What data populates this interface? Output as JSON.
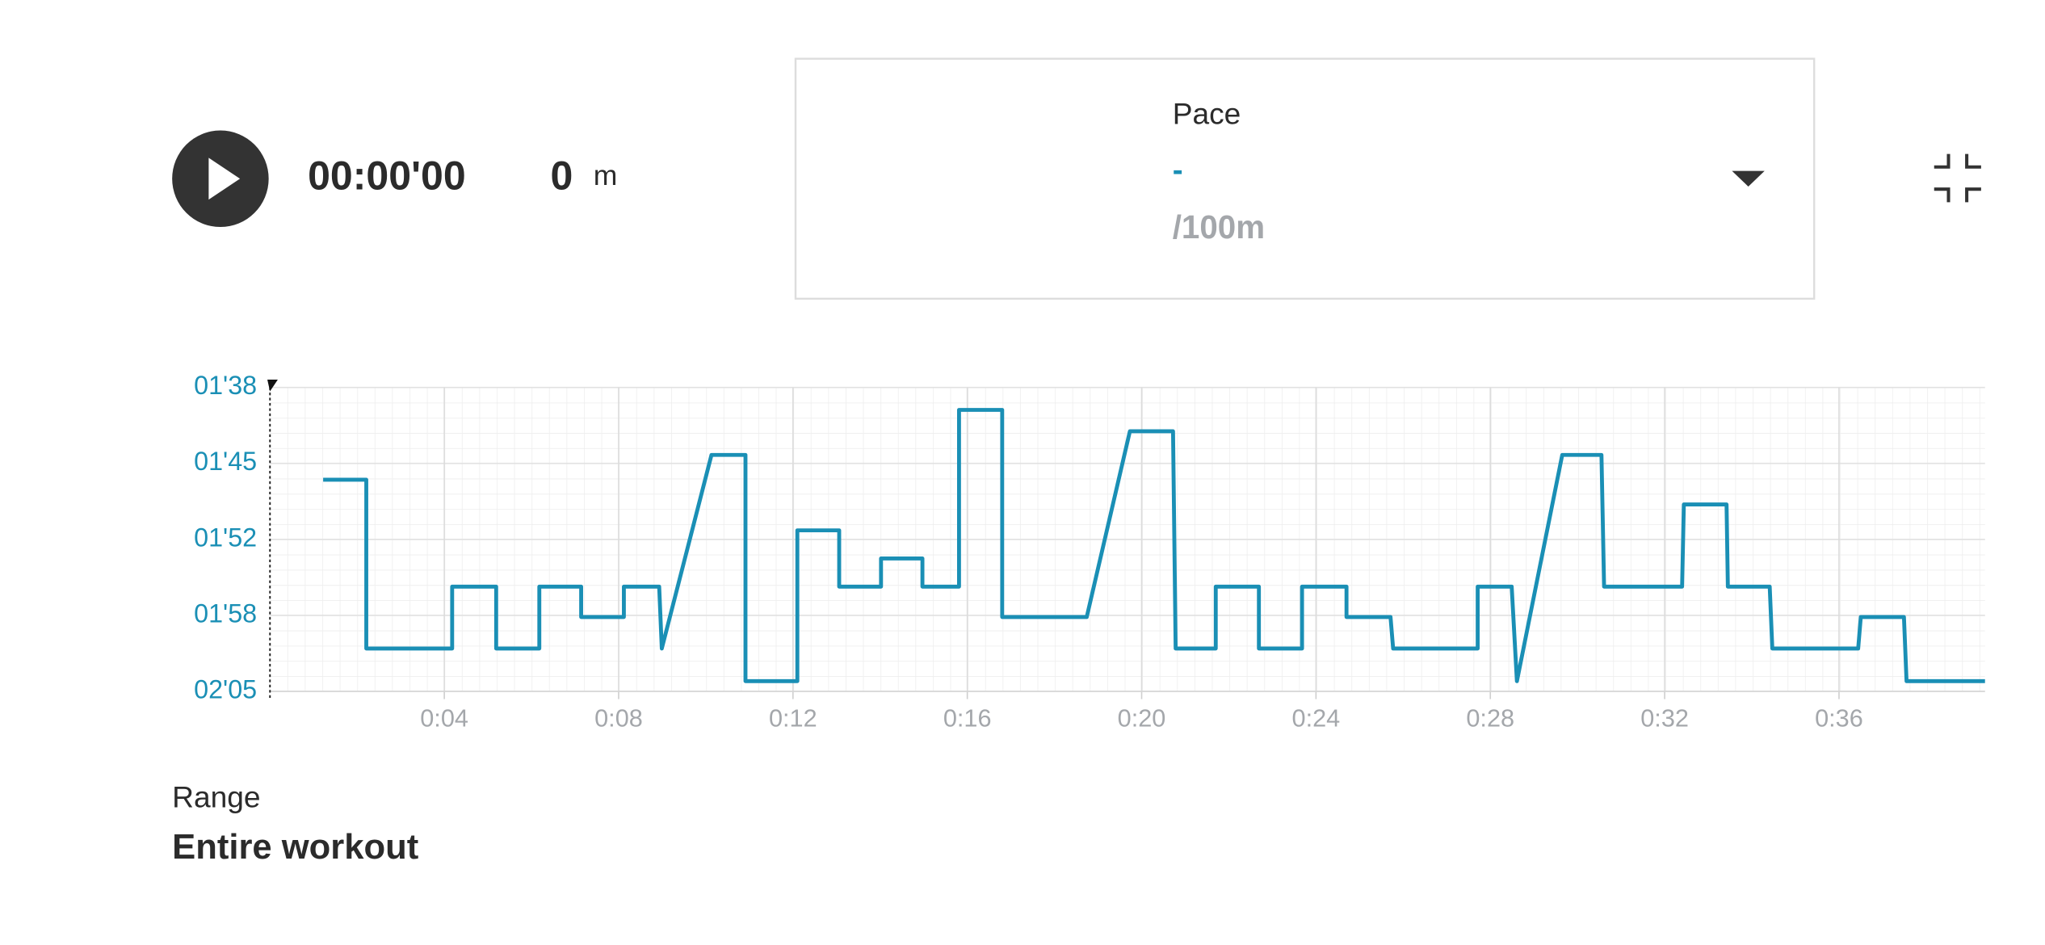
{
  "header": {
    "time": "00:00'00",
    "distance": "0",
    "distance_unit": "m",
    "metric": {
      "label": "Pace",
      "value": "-",
      "unit": "/100m"
    }
  },
  "chart_data": {
    "type": "line",
    "y_inverted": true,
    "grid": true,
    "xlim": [
      0,
      39.35
    ],
    "ylim": [
      98,
      125
    ],
    "xticks": [
      {
        "value": 4,
        "label": "0:04"
      },
      {
        "value": 8,
        "label": "0:08"
      },
      {
        "value": 12,
        "label": "0:12"
      },
      {
        "value": 16,
        "label": "0:16"
      },
      {
        "value": 20,
        "label": "0:20"
      },
      {
        "value": 24,
        "label": "0:24"
      },
      {
        "value": 28,
        "label": "0:28"
      },
      {
        "value": 32,
        "label": "0:32"
      },
      {
        "value": 36,
        "label": "0:36"
      }
    ],
    "yticks": [
      {
        "value": 98,
        "label": "01'38"
      },
      {
        "value": 104.75,
        "label": "01'45"
      },
      {
        "value": 111.5,
        "label": "01'52"
      },
      {
        "value": 118.25,
        "label": "01'58"
      },
      {
        "value": 125,
        "label": "02'05"
      }
    ],
    "series": [
      {
        "color": "#1a8fb5",
        "x": [
          1.22,
          2.21,
          2.21,
          4.18,
          4.18,
          5.19,
          5.19,
          6.18,
          6.18,
          7.14,
          7.14,
          8.12,
          8.12,
          8.93,
          8.99,
          10.13,
          10.91,
          10.91,
          12.1,
          12.1,
          13.06,
          13.06,
          14.02,
          14.02,
          14.97,
          14.97,
          15.81,
          15.81,
          16.8,
          16.8,
          18.74,
          19.73,
          20.72,
          20.78,
          21.7,
          21.7,
          22.69,
          22.69,
          23.68,
          23.68,
          24.7,
          24.7,
          25.71,
          25.77,
          27.71,
          27.71,
          28.49,
          28.61,
          29.65,
          30.55,
          30.61,
          32.4,
          32.44,
          33.42,
          33.45,
          34.41,
          34.47,
          36.44,
          36.5,
          37.49,
          37.55,
          39.35
        ],
        "values": [
          106.2,
          106.2,
          121.2,
          121.2,
          115.7,
          115.7,
          121.2,
          121.2,
          115.7,
          115.7,
          118.4,
          118.4,
          115.7,
          115.7,
          121.2,
          104.0,
          104.0,
          124.1,
          124.1,
          110.7,
          110.7,
          115.7,
          115.7,
          113.2,
          113.2,
          115.7,
          115.7,
          100.0,
          100.0,
          118.4,
          118.4,
          101.9,
          101.9,
          121.2,
          121.2,
          115.7,
          115.7,
          121.2,
          121.2,
          115.7,
          115.7,
          118.4,
          118.4,
          121.2,
          121.2,
          115.7,
          115.7,
          124.1,
          104.0,
          104.0,
          115.7,
          115.7,
          108.4,
          108.4,
          115.7,
          115.7,
          121.2,
          121.2,
          118.4,
          118.4,
          124.1,
          124.1
        ]
      }
    ]
  },
  "range": {
    "label": "Range",
    "value": "Entire workout"
  }
}
